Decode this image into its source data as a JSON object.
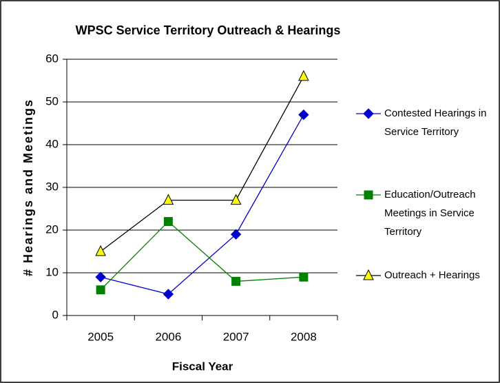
{
  "chart_data": {
    "type": "line",
    "title": "WPSC Service Territory Outreach & Hearings",
    "x_label": "Fiscal Year",
    "y_label": "# Hearings and Meetings",
    "categories": [
      "2005",
      "2006",
      "2007",
      "2008"
    ],
    "series": [
      {
        "name": "Contested Hearings in Service Territory",
        "color": "#0000cc",
        "marker": "diamond",
        "values": [
          9,
          5,
          19,
          47
        ]
      },
      {
        "name": "Education/Outreach Meetings in Service Territory",
        "color": "#008000",
        "marker": "square",
        "values": [
          6,
          22,
          8,
          9
        ]
      },
      {
        "name": "Outreach + Hearings",
        "color": "#000000",
        "marker": "triangle",
        "marker_fill": "#ffff00",
        "values": [
          15,
          27,
          27,
          56
        ]
      }
    ],
    "ylim": [
      0,
      60
    ],
    "yticks": [
      0,
      10,
      20,
      30,
      40,
      50,
      60
    ],
    "grid": true,
    "legend": "right"
  }
}
